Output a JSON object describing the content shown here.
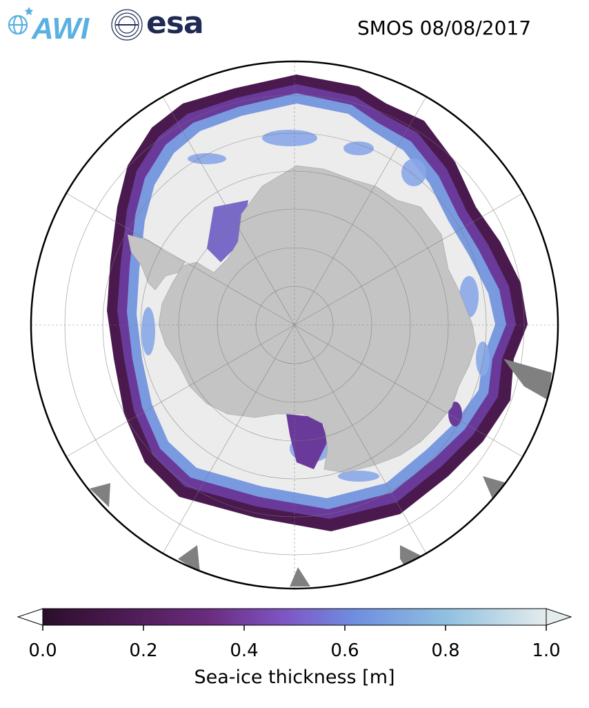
{
  "title": "SMOS 08/08/2017",
  "logos": {
    "awi_text": "AWI",
    "esa_text": "esa"
  },
  "colorbar": {
    "label": "Sea-ice thickness [m]",
    "ticks": [
      "0.0",
      "0.2",
      "0.4",
      "0.6",
      "0.8",
      "1.0"
    ],
    "range": [
      0.0,
      1.0
    ],
    "colors": [
      "#2a0e2a",
      "#4a1a4f",
      "#6a2c7e",
      "#7e55c4",
      "#6f8ee0",
      "#8fc0e0",
      "#e4ecec"
    ]
  },
  "map": {
    "projection": "south-polar-stereographic",
    "land_color": "#c4c4c4",
    "thick_ice_color": "#ececec",
    "mask_color": "#808080"
  }
}
